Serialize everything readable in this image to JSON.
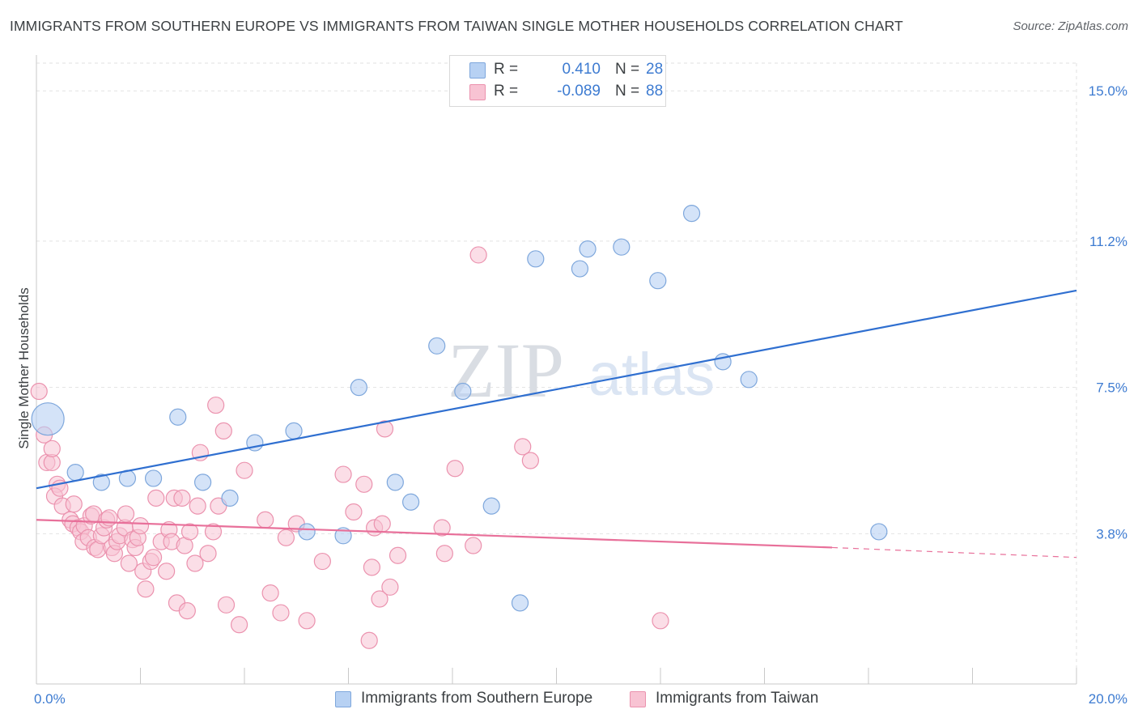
{
  "title": "IMMIGRANTS FROM SOUTHERN EUROPE VS IMMIGRANTS FROM TAIWAN SINGLE MOTHER HOUSEHOLDS CORRELATION CHART",
  "source": "Source: ZipAtlas.com",
  "watermark": {
    "zip": "ZIP",
    "atlas": "atlas"
  },
  "legend": {
    "rows": [
      {
        "r_label": "R =",
        "r_value": "0.410",
        "n_label": "N =",
        "n_value": "28"
      },
      {
        "r_label": "R =",
        "r_value": "-0.089",
        "n_label": "N =",
        "n_value": "88"
      }
    ]
  },
  "bottom_legend": {
    "series1": "Immigrants from Southern Europe",
    "series2": "Immigrants from Taiwan"
  },
  "colors": {
    "blue_fill": "#b7d1f3",
    "blue_stroke": "#7ea7dc",
    "blue_line": "#2f6fd0",
    "pink_fill": "#f8c3d3",
    "pink_stroke": "#eb92ae",
    "pink_line": "#e8709a",
    "tick_label": "#3d7bd1",
    "grid": "#e2e2e2"
  },
  "chart_data": {
    "type": "scatter",
    "title": "IMMIGRANTS FROM SOUTHERN EUROPE VS IMMIGRANTS FROM TAIWAN SINGLE MOTHER HOUSEHOLDS CORRELATION CHART",
    "xlabel": "",
    "ylabel": "Single Mother Households",
    "xlim": [
      0,
      20
    ],
    "ylim": [
      0,
      15.7
    ],
    "x_tick_labels": [
      "0.0%",
      "20.0%"
    ],
    "y_ticks": [
      3.8,
      7.5,
      11.2,
      15.0
    ],
    "y_tick_labels": [
      "3.8%",
      "7.5%",
      "11.2%",
      "15.0%"
    ],
    "grid": true,
    "series": [
      {
        "name": "Immigrants from Southern Europe",
        "color": "blue",
        "R": 0.41,
        "N": 28,
        "trend": {
          "x": [
            0,
            20
          ],
          "y": [
            4.95,
            9.95
          ]
        },
        "points": [
          {
            "x": 0.22,
            "y": 6.7,
            "big": true
          },
          {
            "x": 0.75,
            "y": 5.35
          },
          {
            "x": 1.25,
            "y": 5.1
          },
          {
            "x": 1.75,
            "y": 5.2
          },
          {
            "x": 2.25,
            "y": 5.2
          },
          {
            "x": 2.72,
            "y": 6.75
          },
          {
            "x": 3.2,
            "y": 5.1
          },
          {
            "x": 3.72,
            "y": 4.7
          },
          {
            "x": 4.2,
            "y": 6.1
          },
          {
            "x": 4.95,
            "y": 6.4
          },
          {
            "x": 5.2,
            "y": 3.85
          },
          {
            "x": 5.9,
            "y": 3.75
          },
          {
            "x": 6.2,
            "y": 7.5
          },
          {
            "x": 6.9,
            "y": 5.1
          },
          {
            "x": 7.2,
            "y": 4.6
          },
          {
            "x": 7.7,
            "y": 8.55
          },
          {
            "x": 8.2,
            "y": 7.4
          },
          {
            "x": 8.75,
            "y": 4.5
          },
          {
            "x": 9.3,
            "y": 2.05
          },
          {
            "x": 9.6,
            "y": 10.75
          },
          {
            "x": 10.45,
            "y": 10.5
          },
          {
            "x": 10.6,
            "y": 11.0
          },
          {
            "x": 11.25,
            "y": 11.05
          },
          {
            "x": 11.95,
            "y": 10.2
          },
          {
            "x": 12.6,
            "y": 11.9
          },
          {
            "x": 13.2,
            "y": 8.15
          },
          {
            "x": 13.7,
            "y": 7.7
          },
          {
            "x": 16.2,
            "y": 3.85
          }
        ]
      },
      {
        "name": "Immigrants from Taiwan",
        "color": "pink",
        "R": -0.089,
        "N": 88,
        "trend": {
          "x": [
            0,
            15.3
          ],
          "y": [
            4.15,
            3.45
          ]
        },
        "trend_dashed": {
          "x": [
            15.3,
            20
          ],
          "y": [
            3.45,
            3.2
          ]
        },
        "points": [
          {
            "x": 0.05,
            "y": 7.4
          },
          {
            "x": 0.15,
            "y": 6.3
          },
          {
            "x": 0.2,
            "y": 5.6
          },
          {
            "x": 0.3,
            "y": 5.6
          },
          {
            "x": 0.3,
            "y": 5.95
          },
          {
            "x": 0.4,
            "y": 5.05
          },
          {
            "x": 0.35,
            "y": 4.75
          },
          {
            "x": 0.45,
            "y": 4.95
          },
          {
            "x": 0.5,
            "y": 4.5
          },
          {
            "x": 0.65,
            "y": 4.15
          },
          {
            "x": 0.7,
            "y": 4.05
          },
          {
            "x": 0.72,
            "y": 4.55
          },
          {
            "x": 0.8,
            "y": 3.95
          },
          {
            "x": 0.85,
            "y": 3.85
          },
          {
            "x": 0.9,
            "y": 3.6
          },
          {
            "x": 0.92,
            "y": 4.0
          },
          {
            "x": 1.0,
            "y": 3.7
          },
          {
            "x": 1.05,
            "y": 4.25
          },
          {
            "x": 1.1,
            "y": 4.3
          },
          {
            "x": 1.12,
            "y": 3.45
          },
          {
            "x": 1.18,
            "y": 3.4
          },
          {
            "x": 1.25,
            "y": 3.75
          },
          {
            "x": 1.3,
            "y": 3.95
          },
          {
            "x": 1.35,
            "y": 4.15
          },
          {
            "x": 1.4,
            "y": 4.2
          },
          {
            "x": 1.45,
            "y": 3.45
          },
          {
            "x": 1.5,
            "y": 3.3
          },
          {
            "x": 1.55,
            "y": 3.6
          },
          {
            "x": 1.6,
            "y": 3.75
          },
          {
            "x": 1.7,
            "y": 3.95
          },
          {
            "x": 1.72,
            "y": 4.3
          },
          {
            "x": 1.78,
            "y": 3.05
          },
          {
            "x": 1.85,
            "y": 3.65
          },
          {
            "x": 1.9,
            "y": 3.45
          },
          {
            "x": 1.95,
            "y": 3.7
          },
          {
            "x": 2.0,
            "y": 4.0
          },
          {
            "x": 2.05,
            "y": 2.85
          },
          {
            "x": 2.1,
            "y": 2.4
          },
          {
            "x": 2.2,
            "y": 3.1
          },
          {
            "x": 2.25,
            "y": 3.2
          },
          {
            "x": 2.3,
            "y": 4.7
          },
          {
            "x": 2.4,
            "y": 3.6
          },
          {
            "x": 2.5,
            "y": 2.85
          },
          {
            "x": 2.55,
            "y": 3.9
          },
          {
            "x": 2.6,
            "y": 3.6
          },
          {
            "x": 2.65,
            "y": 4.7
          },
          {
            "x": 2.7,
            "y": 2.05
          },
          {
            "x": 2.8,
            "y": 4.7
          },
          {
            "x": 2.85,
            "y": 3.5
          },
          {
            "x": 2.9,
            "y": 1.85
          },
          {
            "x": 2.95,
            "y": 3.85
          },
          {
            "x": 3.05,
            "y": 3.05
          },
          {
            "x": 3.1,
            "y": 4.5
          },
          {
            "x": 3.15,
            "y": 5.85
          },
          {
            "x": 3.3,
            "y": 3.3
          },
          {
            "x": 3.4,
            "y": 3.85
          },
          {
            "x": 3.5,
            "y": 4.5
          },
          {
            "x": 3.45,
            "y": 7.05
          },
          {
            "x": 3.6,
            "y": 6.4
          },
          {
            "x": 3.65,
            "y": 2.0
          },
          {
            "x": 3.9,
            "y": 1.5
          },
          {
            "x": 4.0,
            "y": 5.4
          },
          {
            "x": 4.4,
            "y": 4.15
          },
          {
            "x": 4.5,
            "y": 2.3
          },
          {
            "x": 4.7,
            "y": 1.8
          },
          {
            "x": 4.8,
            "y": 3.7
          },
          {
            "x": 5.0,
            "y": 4.05
          },
          {
            "x": 5.2,
            "y": 1.6
          },
          {
            "x": 5.5,
            "y": 3.1
          },
          {
            "x": 5.9,
            "y": 5.3
          },
          {
            "x": 6.1,
            "y": 4.35
          },
          {
            "x": 6.3,
            "y": 5.05
          },
          {
            "x": 6.4,
            "y": 1.1
          },
          {
            "x": 6.45,
            "y": 2.95
          },
          {
            "x": 6.5,
            "y": 3.95
          },
          {
            "x": 6.6,
            "y": 2.15
          },
          {
            "x": 6.65,
            "y": 4.05
          },
          {
            "x": 6.7,
            "y": 6.45
          },
          {
            "x": 6.8,
            "y": 2.45
          },
          {
            "x": 6.95,
            "y": 3.25
          },
          {
            "x": 7.8,
            "y": 3.95
          },
          {
            "x": 7.85,
            "y": 3.3
          },
          {
            "x": 8.05,
            "y": 5.45
          },
          {
            "x": 8.4,
            "y": 3.5
          },
          {
            "x": 8.5,
            "y": 10.85
          },
          {
            "x": 9.35,
            "y": 6.0
          },
          {
            "x": 9.5,
            "y": 5.65
          },
          {
            "x": 12.0,
            "y": 1.6
          }
        ]
      }
    ]
  }
}
